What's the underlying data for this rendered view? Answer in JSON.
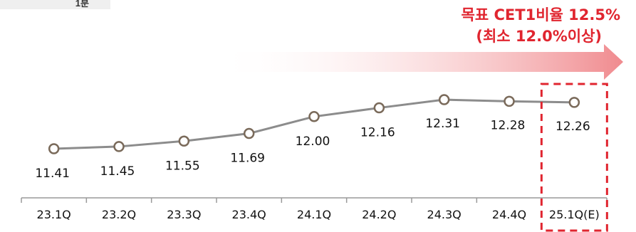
{
  "corner_label": "1분",
  "target": {
    "line1": "목표 CET1비율 12.5%",
    "line2": "(최소 12.0%이상)"
  },
  "colors": {
    "line": "#8c8c8c",
    "marker_stroke": "#7a6a5a",
    "accent_red": "#e0252f",
    "arrow": "#f08a8e"
  },
  "chart_data": {
    "type": "line",
    "title": "",
    "xlabel": "",
    "ylabel": "",
    "categories": [
      "23.1Q",
      "23.2Q",
      "23.3Q",
      "23.4Q",
      "24.1Q",
      "24.2Q",
      "24.3Q",
      "24.4Q",
      "25.1Q(E)"
    ],
    "series": [
      {
        "values": [
          11.41,
          11.45,
          11.55,
          11.69,
          12.0,
          12.16,
          12.31,
          12.28,
          12.26
        ]
      }
    ],
    "value_labels": [
      "11.41",
      "11.45",
      "11.55",
      "11.69",
      "12.00",
      "12.16",
      "12.31",
      "12.28",
      "12.26"
    ],
    "label_position": [
      "below",
      "below",
      "below",
      "below",
      "below",
      "below",
      "above",
      "above",
      "above"
    ],
    "highlight_category": "25.1Q(E)",
    "grid": false,
    "legend": "none"
  }
}
